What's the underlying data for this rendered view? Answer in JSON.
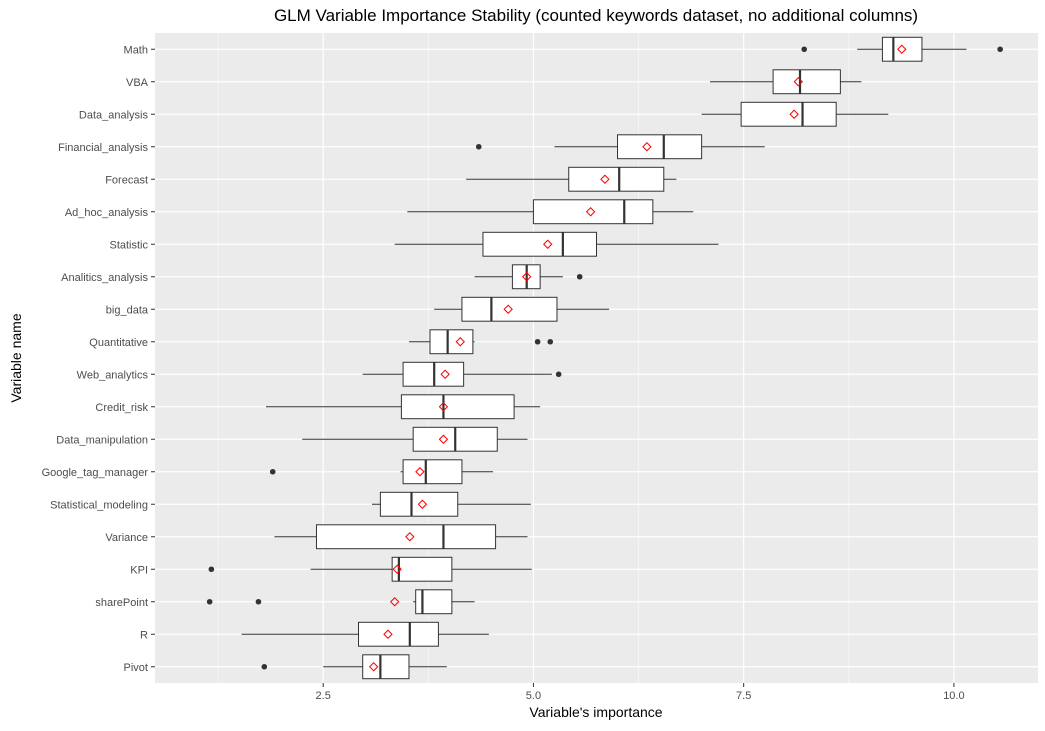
{
  "chart_data": {
    "type": "boxplot",
    "title": "GLM Variable Importance Stability (counted keywords dataset, no additional columns)",
    "xlabel": "Variable's importance",
    "ylabel": "Variable name",
    "xlim": [
      0.5,
      11.0
    ],
    "xticks": [
      2.5,
      5.0,
      7.5,
      10.0
    ],
    "xtick_labels": [
      "2.5",
      "5.0",
      "7.5",
      "10.0"
    ],
    "grid": true,
    "colors": {
      "panel": "#ebebeb",
      "grid": "#ffffff",
      "box_fill": "#ffffff",
      "box_line": "#333333",
      "mean_marker": "#ff0000",
      "outlier": "#333333"
    },
    "series": [
      {
        "name": "Math",
        "whisker_low": 8.85,
        "q1": 9.15,
        "median": 9.28,
        "q3": 9.62,
        "whisker_high": 10.15,
        "mean": 9.38,
        "outliers": [
          8.22,
          10.55
        ]
      },
      {
        "name": "VBA",
        "whisker_low": 7.1,
        "q1": 7.85,
        "median": 8.17,
        "q3": 8.65,
        "whisker_high": 8.9,
        "mean": 8.15,
        "outliers": []
      },
      {
        "name": "Data_analysis",
        "whisker_low": 7.0,
        "q1": 7.47,
        "median": 8.2,
        "q3": 8.6,
        "whisker_high": 9.22,
        "mean": 8.1,
        "outliers": []
      },
      {
        "name": "Financial_analysis",
        "whisker_low": 5.25,
        "q1": 6.0,
        "median": 6.55,
        "q3": 7.0,
        "whisker_high": 7.75,
        "mean": 6.35,
        "outliers": [
          4.35
        ]
      },
      {
        "name": "Forecast",
        "whisker_low": 4.2,
        "q1": 5.42,
        "median": 6.02,
        "q3": 6.55,
        "whisker_high": 6.7,
        "mean": 5.85,
        "outliers": []
      },
      {
        "name": "Ad_hoc_analysis",
        "whisker_low": 3.5,
        "q1": 5.0,
        "median": 6.08,
        "q3": 6.42,
        "whisker_high": 6.9,
        "mean": 5.68,
        "outliers": []
      },
      {
        "name": "Statistic",
        "whisker_low": 3.35,
        "q1": 4.4,
        "median": 5.35,
        "q3": 5.75,
        "whisker_high": 7.2,
        "mean": 5.17,
        "outliers": []
      },
      {
        "name": "Analitics_analysis",
        "whisker_low": 4.3,
        "q1": 4.75,
        "median": 4.92,
        "q3": 5.08,
        "whisker_high": 5.35,
        "mean": 4.92,
        "outliers": [
          5.55
        ]
      },
      {
        "name": "big_data",
        "whisker_low": 3.82,
        "q1": 4.15,
        "median": 4.5,
        "q3": 5.28,
        "whisker_high": 5.9,
        "mean": 4.7,
        "outliers": []
      },
      {
        "name": "Quantitative",
        "whisker_low": 3.52,
        "q1": 3.77,
        "median": 3.98,
        "q3": 4.28,
        "whisker_high": 4.3,
        "mean": 4.13,
        "outliers": [
          5.05,
          5.2
        ]
      },
      {
        "name": "Web_analytics",
        "whisker_low": 2.97,
        "q1": 3.45,
        "median": 3.82,
        "q3": 4.17,
        "whisker_high": 5.22,
        "mean": 3.95,
        "outliers": [
          5.3
        ]
      },
      {
        "name": "Credit_risk",
        "whisker_low": 1.82,
        "q1": 3.43,
        "median": 3.93,
        "q3": 4.77,
        "whisker_high": 5.08,
        "mean": 3.93,
        "outliers": []
      },
      {
        "name": "Data_manipulation",
        "whisker_low": 2.25,
        "q1": 3.57,
        "median": 4.07,
        "q3": 4.57,
        "whisker_high": 4.93,
        "mean": 3.93,
        "outliers": []
      },
      {
        "name": "Google_tag_manager",
        "whisker_low": 3.42,
        "q1": 3.45,
        "median": 3.72,
        "q3": 4.15,
        "whisker_high": 4.52,
        "mean": 3.65,
        "outliers": [
          1.9
        ]
      },
      {
        "name": "Statistical_modeling",
        "whisker_low": 3.08,
        "q1": 3.18,
        "median": 3.55,
        "q3": 4.1,
        "whisker_high": 4.97,
        "mean": 3.68,
        "outliers": []
      },
      {
        "name": "Variance",
        "whisker_low": 1.92,
        "q1": 2.42,
        "median": 3.93,
        "q3": 4.55,
        "whisker_high": 4.93,
        "mean": 3.53,
        "outliers": []
      },
      {
        "name": "KPI",
        "whisker_low": 2.35,
        "q1": 3.32,
        "median": 3.4,
        "q3": 4.03,
        "whisker_high": 4.98,
        "mean": 3.38,
        "outliers": [
          1.17
        ]
      },
      {
        "name": "sharePoint",
        "whisker_low": 3.57,
        "q1": 3.6,
        "median": 3.68,
        "q3": 4.03,
        "whisker_high": 4.3,
        "mean": 3.35,
        "outliers": [
          1.15,
          1.73
        ]
      },
      {
        "name": "R",
        "whisker_low": 1.53,
        "q1": 2.92,
        "median": 3.53,
        "q3": 3.87,
        "whisker_high": 4.47,
        "mean": 3.27,
        "outliers": []
      },
      {
        "name": "Pivot",
        "whisker_low": 2.5,
        "q1": 2.97,
        "median": 3.18,
        "q3": 3.52,
        "whisker_high": 3.97,
        "mean": 3.1,
        "outliers": [
          1.8
        ]
      }
    ]
  }
}
